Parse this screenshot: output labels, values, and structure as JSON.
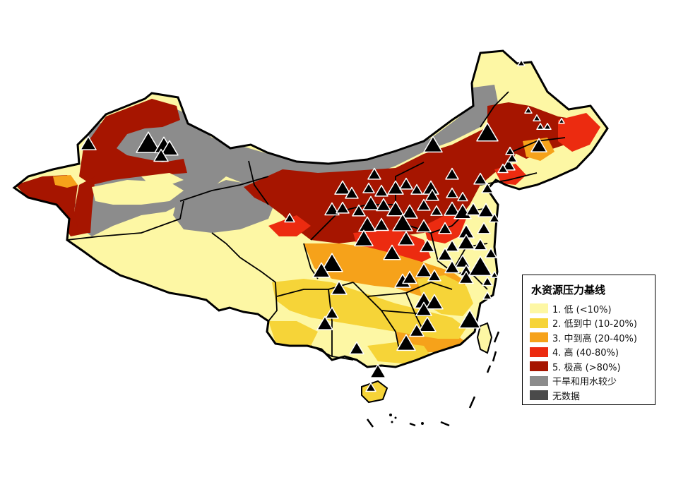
{
  "legend": {
    "title": "水资源压力基线",
    "items": [
      {
        "label": "1. 低 (<10%)",
        "color": "#fdf7a4"
      },
      {
        "label": "2. 低到中 (10-20%)",
        "color": "#f6d438"
      },
      {
        "label": "3. 中到高 (20-40%)",
        "color": "#f6a21a"
      },
      {
        "label": "4. 高 (40-80%)",
        "color": "#ec2b10"
      },
      {
        "label": "5. 极高 (>80%)",
        "color": "#a61500"
      },
      {
        "label": "干旱和用水较少",
        "color": "#8c8c8c"
      },
      {
        "label": "无数据",
        "color": "#4a4a4a"
      }
    ]
  },
  "map": {
    "triangle_icon": "triangle-marker-icon",
    "colors": {
      "low": "#fdf7a4",
      "low_medium": "#f6d438",
      "medium_high": "#f6a21a",
      "high": "#ec2b10",
      "extremely_high": "#a61500",
      "arid": "#8c8c8c",
      "no_data": "#4a4a4a",
      "border": "#000000",
      "marker": "#000000",
      "marker_outline": "#ffffff"
    }
  }
}
